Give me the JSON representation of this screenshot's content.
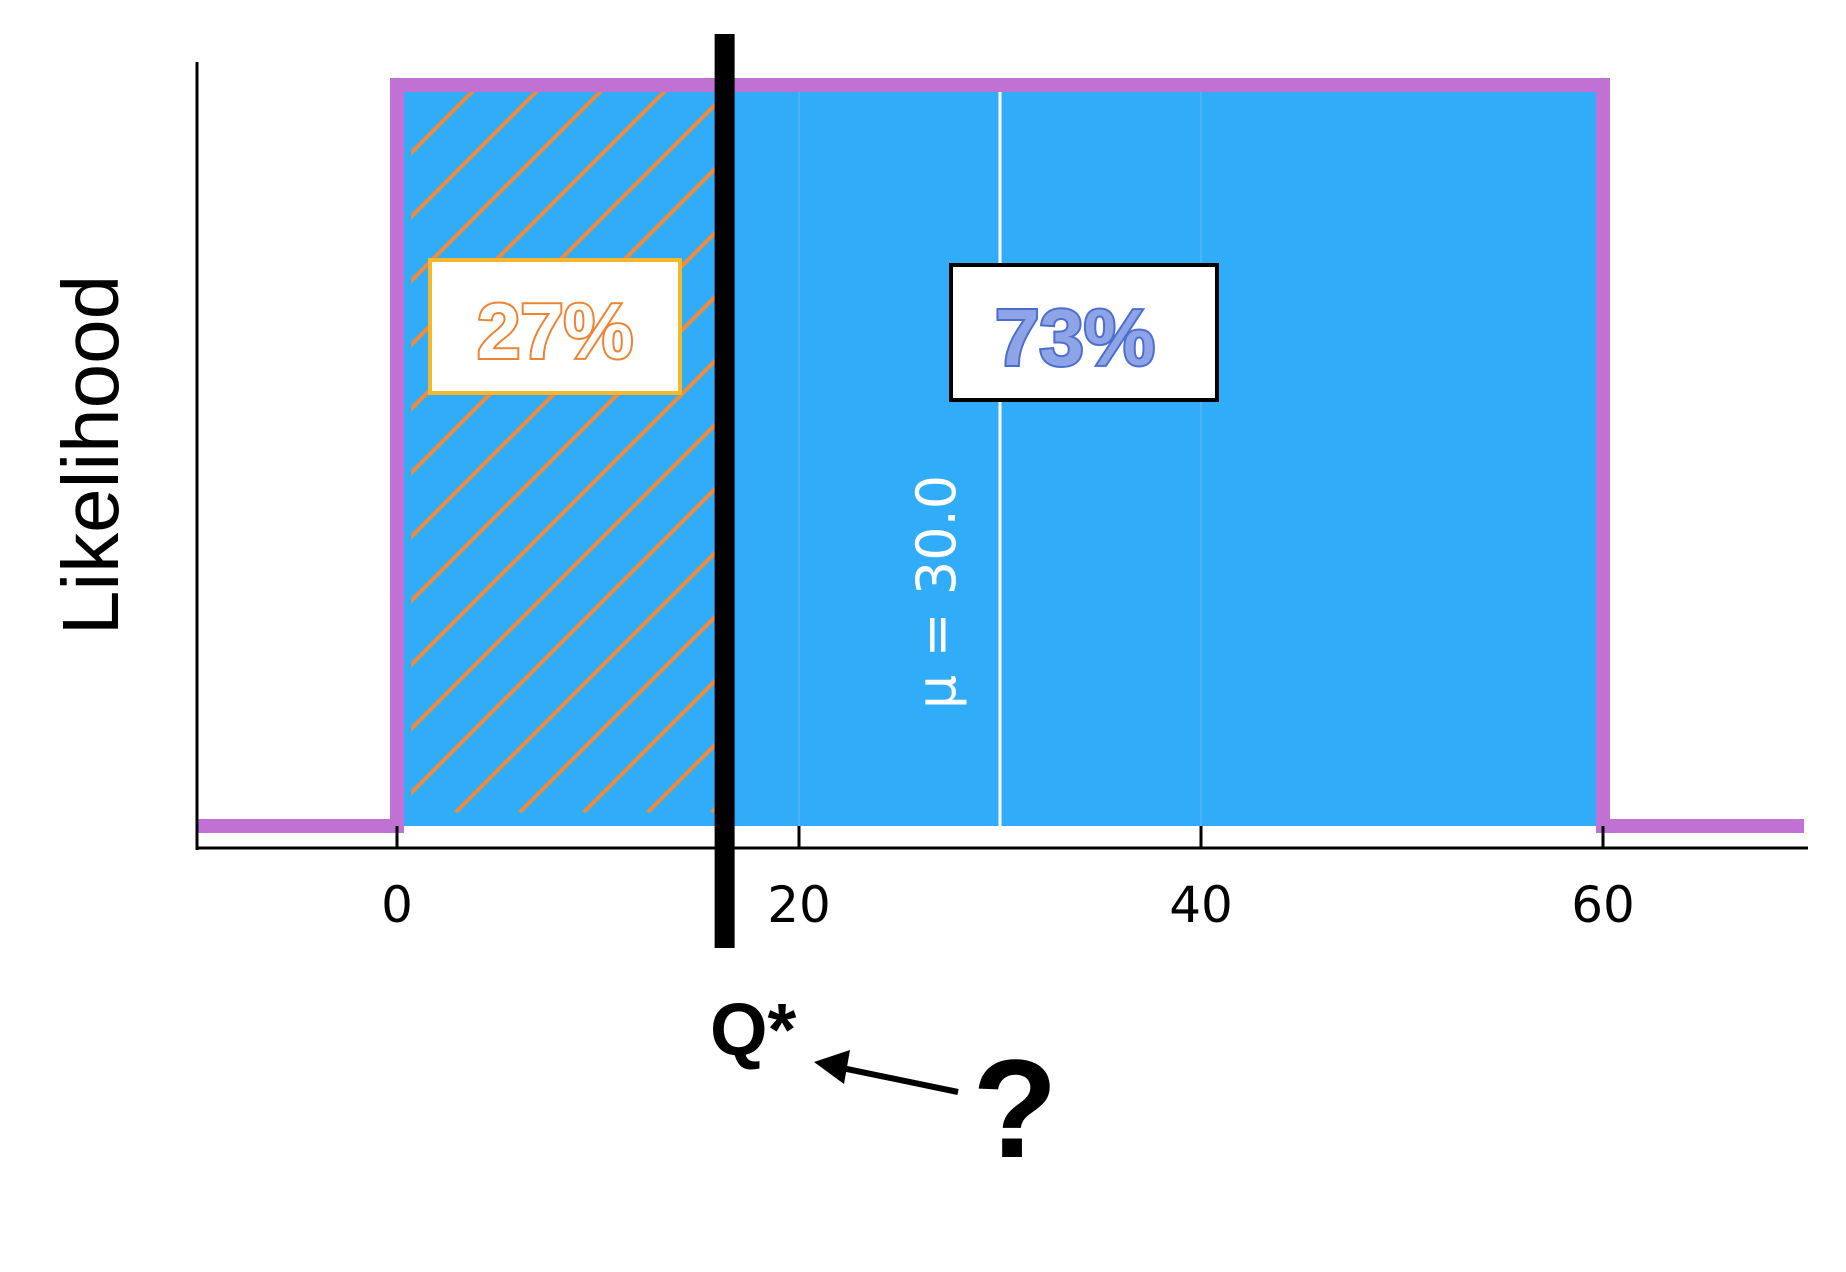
{
  "chart_data": {
    "type": "area",
    "title": "",
    "xlabel": "",
    "ylabel": "Likelihood",
    "xlim": [
      -10,
      70
    ],
    "xticks": [
      0,
      20,
      40,
      60
    ],
    "grid": true,
    "distribution": {
      "name": "uniform",
      "lower": 0,
      "upper": 60,
      "density": 0.0167
    },
    "pdf_line": {
      "x": [
        -10,
        0,
        0,
        60,
        60,
        70
      ],
      "y": [
        0,
        0,
        1,
        1,
        0,
        0
      ]
    },
    "mean": {
      "value": 30.0,
      "label": "μ = 30.0"
    },
    "quantile": {
      "value": 16.2,
      "label": "Q*"
    },
    "regions": [
      {
        "label": "27%",
        "share": 0.27,
        "range": [
          0,
          16.2
        ],
        "hatched": true
      },
      {
        "label": "73%",
        "share": 0.73,
        "range": [
          16.2,
          60
        ],
        "hatched": false
      }
    ],
    "annotation": {
      "text": "?",
      "points_to": "Q*"
    }
  },
  "colors": {
    "fill": "#31acf8",
    "pdf_line": "#c170d4",
    "hatch": "#f28a3a",
    "label_27": "#f08331",
    "label_27_border": "#f5b72c",
    "label_73": "#4a6fd0",
    "quantile_line": "#000000",
    "mean_line": "#ffffff"
  }
}
